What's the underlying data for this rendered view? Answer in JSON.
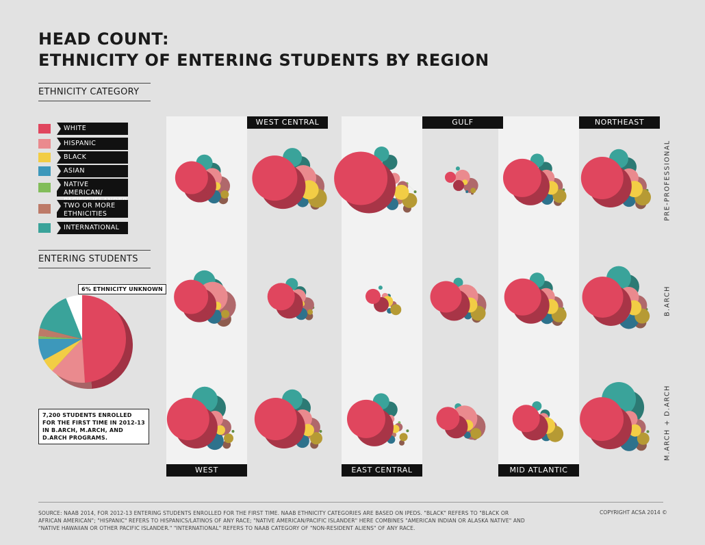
{
  "title_line1": "HEAD COUNT:",
  "title_line2": "ETHNICITY OF ENTERING STUDENTS BY REGION",
  "legend_heading": "ETHNICITY CATEGORY",
  "legend": [
    {
      "label": "WHITE",
      "color": "#e0465e"
    },
    {
      "label": "HISPANIC",
      "color": "#ea8a8e"
    },
    {
      "label": "BLACK",
      "color": "#f2cd45"
    },
    {
      "label": "ASIAN",
      "color": "#3d98bb"
    },
    {
      "label": "NATIVE AMERICAN/ PACIFIC ISLANDER",
      "color": "#82bd5a"
    },
    {
      "label": "TWO OR MORE ETHNICITIES",
      "color": "#bd7a68"
    },
    {
      "label": "INTERNATIONAL",
      "color": "#3aa39a"
    }
  ],
  "entering_heading": "ENTERING STUDENTS",
  "unknown_callout": "6% ETHNICITY UNKNOWN",
  "students_callout": "7,200 STUDENTS ENROLLED FOR THE FIRST TIME IN 2012-13 IN B.ARCH, M.ARCH, AND D.ARCH PROGRAMS.",
  "regions": [
    "WEST",
    "WEST CENTRAL",
    "EAST CENTRAL",
    "GULF",
    "MID ATLANTIC",
    "NORTHEAST"
  ],
  "rows": [
    "PRE-PROFESSIONAL",
    "B.ARCH",
    "M.ARCH + D.ARCH"
  ],
  "source": "SOURCE: NAAB 2014, FOR 2012-13 ENTERING STUDENTS ENROLLED FOR THE FIRST TIME. NAAB ETHNICITY CATEGORIES ARE BASED ON IPEDS. \"BLACK\" REFERS TO \"BLACK OR AFRICAN AMERICAN\"; \"HISPANIC\" REFERS TO HISPANICS/LATINOS OF ANY RACE; \"NATIVE AMERICAN/PACIFIC ISLANDER\" HERE COMBINES \"AMERICAN INDIAN OR ALASKA NATIVE\" AND \"NATIVE HAWAIIAN OR OTHER PACIFIC ISLANDER.\" \"INTERNATIONAL\" REFERS TO NAAB CATEGORY OF \"NON-RESIDENT ALIENS\" OF ANY RACE.",
  "copyright": "COPYRIGHT ACSA 2014 ©",
  "chart_data": [
    {
      "type": "pie",
      "title": "ENTERING STUDENTS",
      "total_students": 7200,
      "categories": [
        "WHITE",
        "HISPANIC",
        "BLACK",
        "ASIAN",
        "NATIVE AMERICAN/ PACIFIC ISLANDER",
        "TWO OR MORE ETHNICITIES",
        "INTERNATIONAL",
        "ETHNICITY UNKNOWN"
      ],
      "values": [
        49,
        13,
        5,
        8,
        1,
        3,
        15,
        6
      ],
      "colors": [
        "#e0465e",
        "#ea8a8e",
        "#f2cd45",
        "#3d98bb",
        "#82bd5a",
        "#bd7a68",
        "#3aa39a",
        "#ffffff"
      ]
    },
    {
      "type": "bubble-matrix",
      "title": "ETHNICITY OF ENTERING STUDENTS BY REGION",
      "categories": [
        "WHITE",
        "HISPANIC",
        "BLACK",
        "ASIAN",
        "NATIVE AMERICAN/ PACIFIC ISLANDER",
        "TWO OR MORE ETHNICITIES",
        "INTERNATIONAL"
      ],
      "columns": [
        "WEST",
        "WEST CENTRAL",
        "EAST CENTRAL",
        "GULF",
        "MID ATLANTIC",
        "NORTHEAST"
      ],
      "rows": [
        "PRE-PROFESSIONAL",
        "B.ARCH",
        "M.ARCH + D.ARCH"
      ],
      "units": "relative bubble size (estimated)",
      "values": [
        [
          [
            24,
            14,
            6,
            10,
            2,
            7,
            12
          ],
          [
            33,
            19,
            14,
            9,
            2,
            7,
            14
          ],
          [
            39,
            8,
            11,
            9,
            2,
            6,
            11
          ],
          [
            8,
            11,
            4,
            2,
            0,
            2,
            3
          ],
          [
            28,
            12,
            10,
            9,
            2,
            6,
            10
          ],
          [
            31,
            14,
            12,
            10,
            2,
            8,
            14
          ]
        ],
        [
          [
            25,
            22,
            6,
            11,
            2,
            11,
            16
          ],
          [
            20,
            11,
            4,
            9,
            2,
            6,
            9
          ],
          [
            11,
            5,
            8,
            4,
            2,
            2,
            3
          ],
          [
            23,
            18,
            11,
            6,
            2,
            7,
            7
          ],
          [
            27,
            13,
            11,
            10,
            2,
            8,
            11
          ],
          [
            30,
            15,
            11,
            15,
            2,
            9,
            18
          ]
        ],
        [
          [
            31,
            12,
            7,
            13,
            2,
            6,
            19
          ],
          [
            31,
            14,
            9,
            10,
            2,
            6,
            15
          ],
          [
            28,
            6,
            6,
            6,
            2,
            4,
            12
          ],
          [
            17,
            19,
            8,
            5,
            2,
            4,
            5
          ],
          [
            20,
            8,
            12,
            8,
            1,
            5,
            7
          ],
          [
            32,
            12,
            9,
            14,
            2,
            8,
            25
          ]
        ]
      ]
    }
  ]
}
